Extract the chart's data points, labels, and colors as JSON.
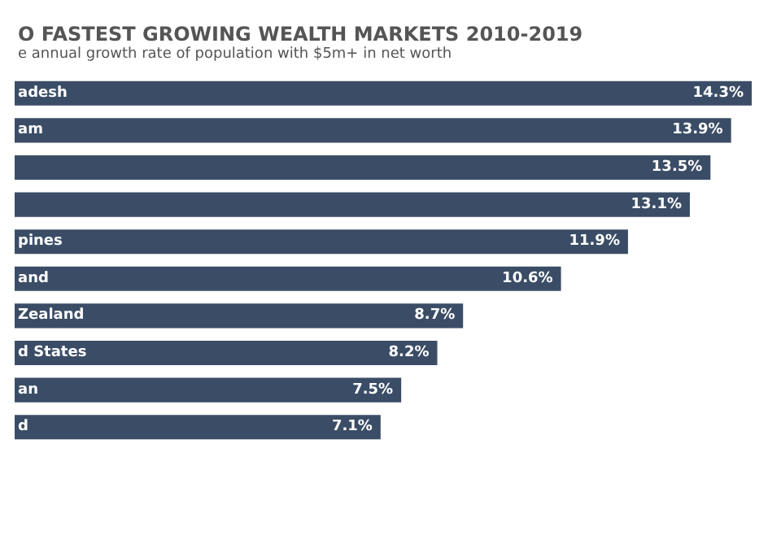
{
  "chart_data": {
    "type": "bar",
    "orientation": "horizontal",
    "title": "O FASTEST GROWING WEALTH MARKETS 2010-2019",
    "subtitle": "e annual growth rate of population with $5m+ in net worth",
    "categories": [
      "adesh",
      "am",
      null,
      null,
      "pines",
      "and",
      "Zealand",
      "d States",
      "an",
      "d"
    ],
    "values": [
      14.3,
      13.9,
      13.5,
      13.1,
      11.9,
      10.6,
      8.7,
      8.2,
      7.5,
      7.1
    ],
    "value_labels": [
      "14.3%",
      "13.9%",
      "13.5%",
      "13.1%",
      "11.9%",
      "10.6%",
      "8.7%",
      "8.2%",
      "7.5%",
      "7.1%"
    ],
    "color": "#3b4d66"
  }
}
